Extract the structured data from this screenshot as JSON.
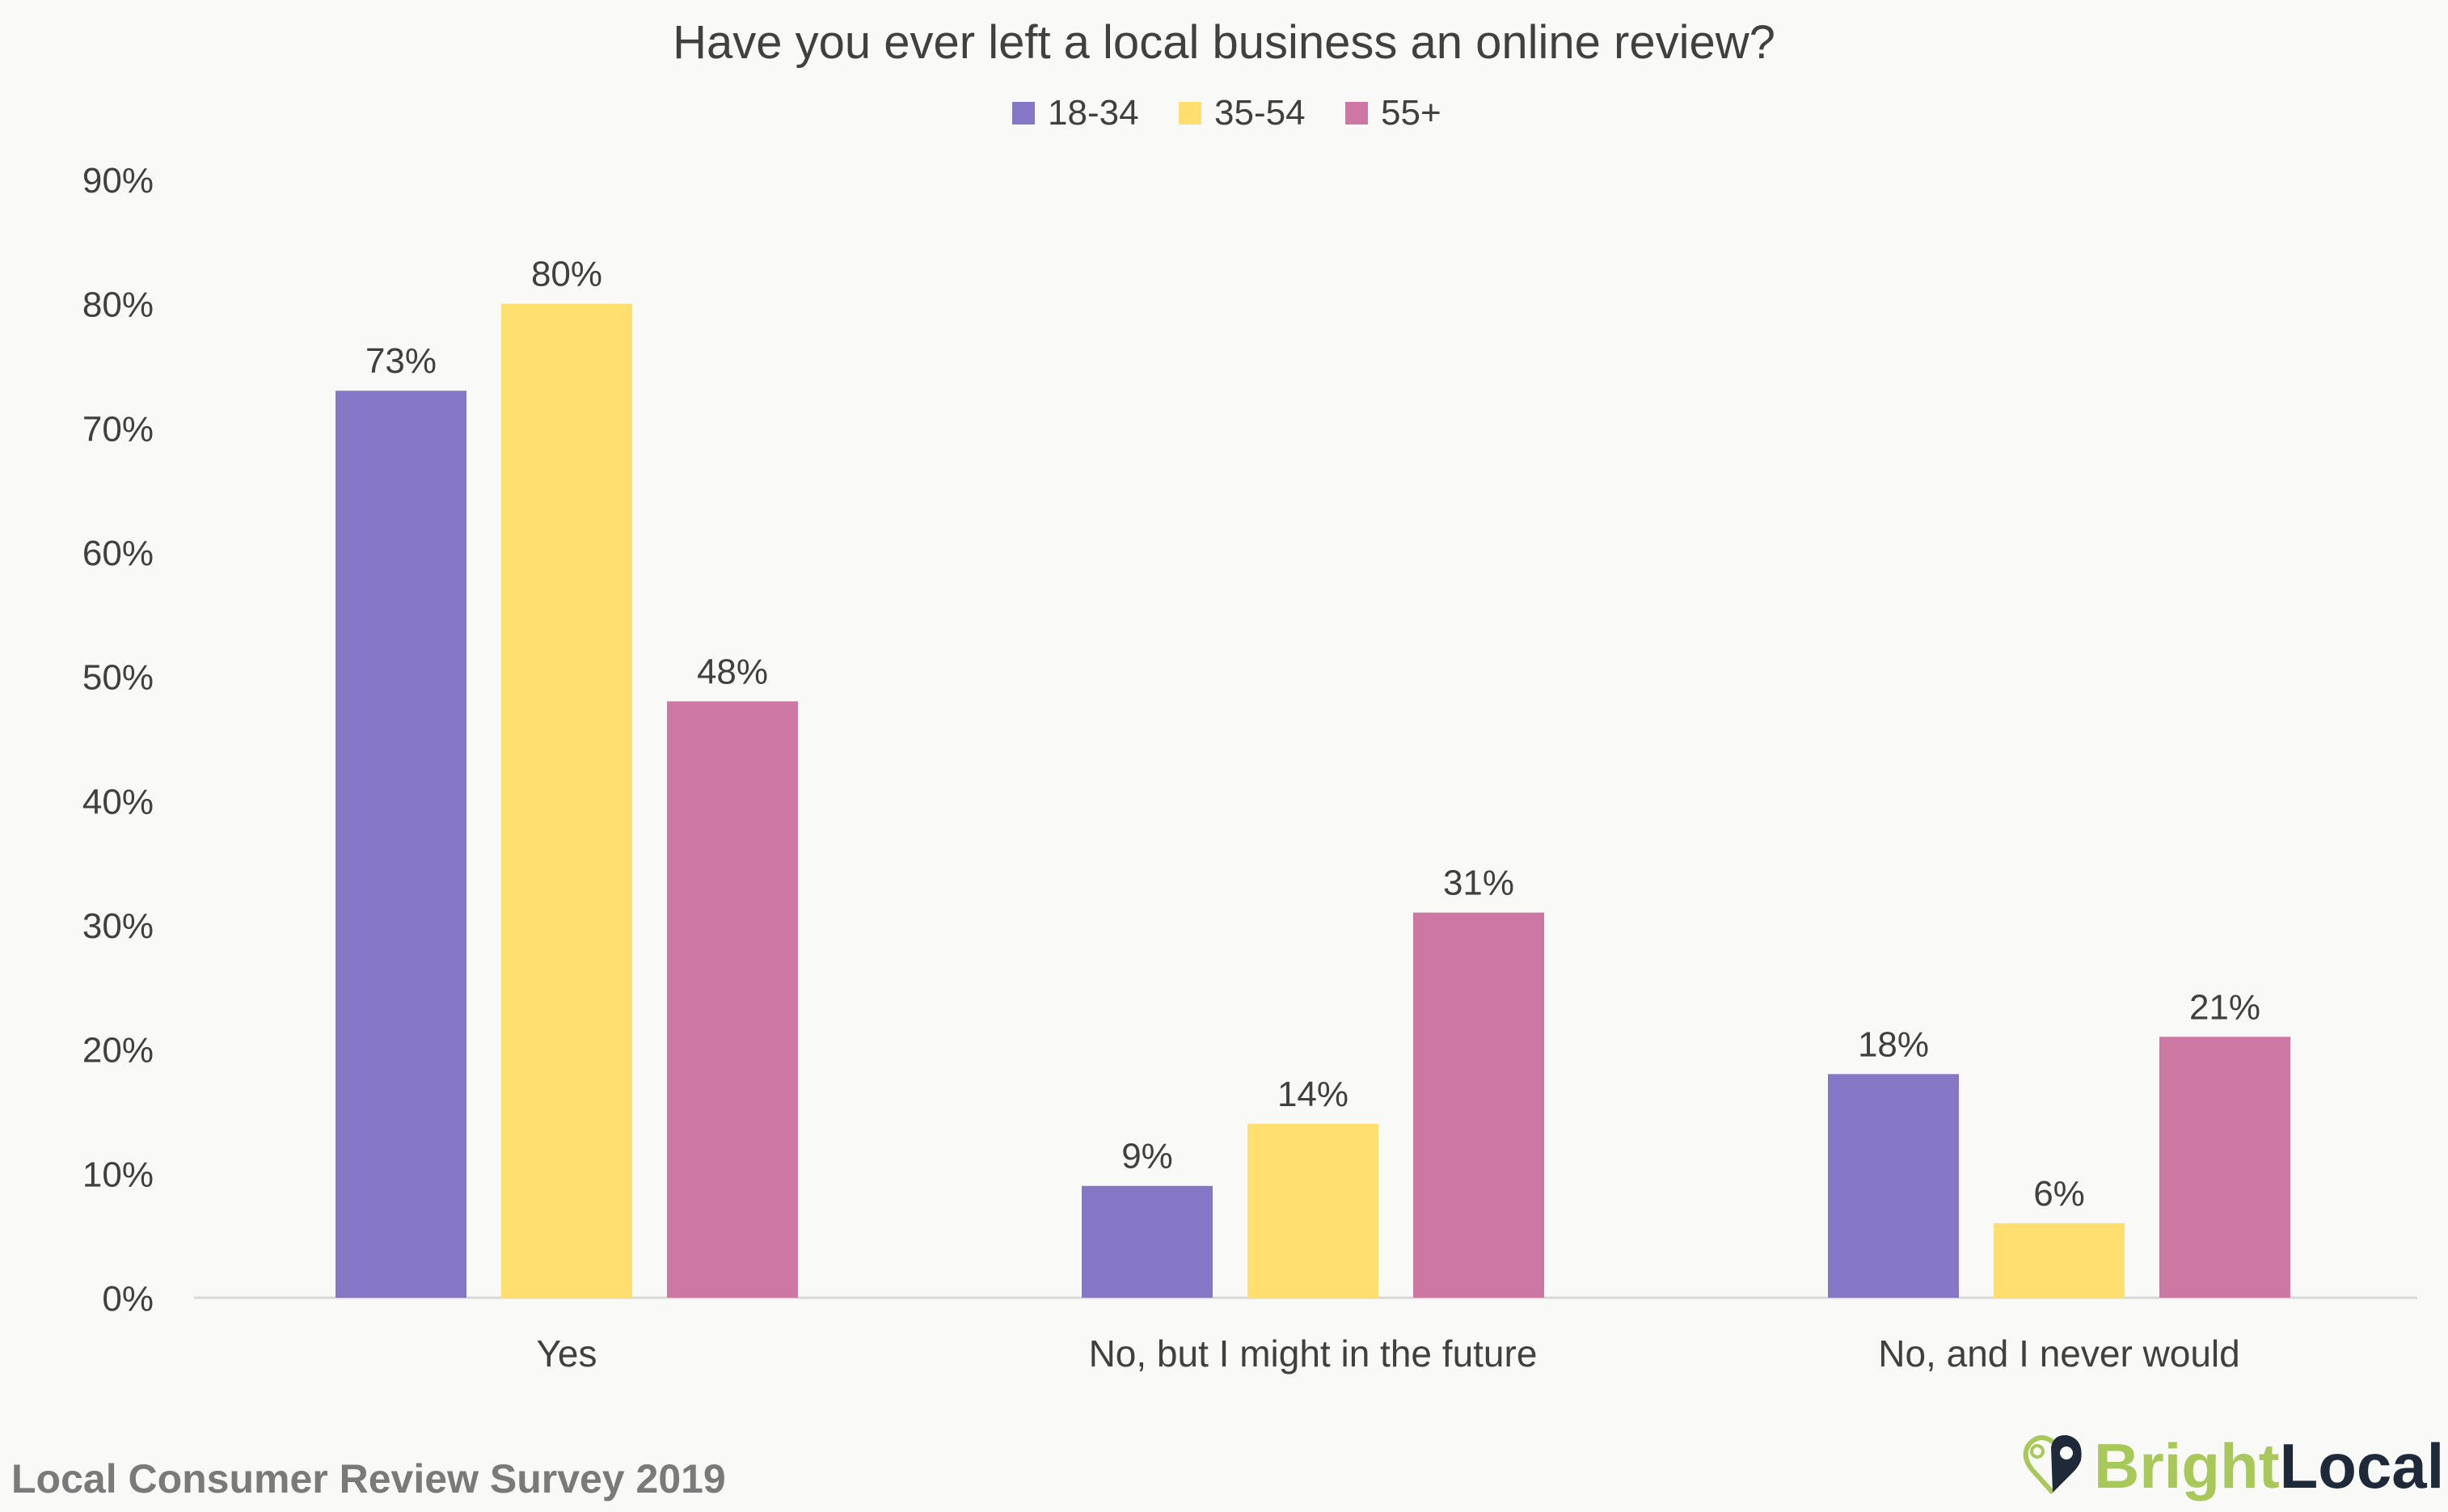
{
  "chart_data": {
    "type": "bar",
    "title": "Have you ever left a local business an online review?",
    "categories": [
      "Yes",
      "No, but I might in the future",
      "No, and I never would"
    ],
    "series": [
      {
        "name": "18-34",
        "color": "#8577c6",
        "values": [
          73,
          9,
          18
        ],
        "labels": [
          "73%",
          "9%",
          "18%"
        ]
      },
      {
        "name": "35-54",
        "color": "#ffdf70",
        "values": [
          80,
          14,
          6
        ],
        "labels": [
          "80%",
          "14%",
          "6%"
        ]
      },
      {
        "name": "55+",
        "color": "#cc78a3",
        "values": [
          48,
          31,
          21
        ],
        "labels": [
          "48%",
          "31%",
          "21%"
        ]
      }
    ],
    "yticks": [
      "0%",
      "10%",
      "20%",
      "30%",
      "40%",
      "50%",
      "60%",
      "70%",
      "80%",
      "90%"
    ],
    "ylim": [
      0,
      90
    ],
    "grid": false,
    "legend": "top-center"
  },
  "footer": {
    "source": "Local Consumer Review Survey 2019"
  },
  "logo": {
    "text_bright": "Bright",
    "text_local": "Local",
    "green": "#a8c85a",
    "navy": "#1e2a3a"
  }
}
